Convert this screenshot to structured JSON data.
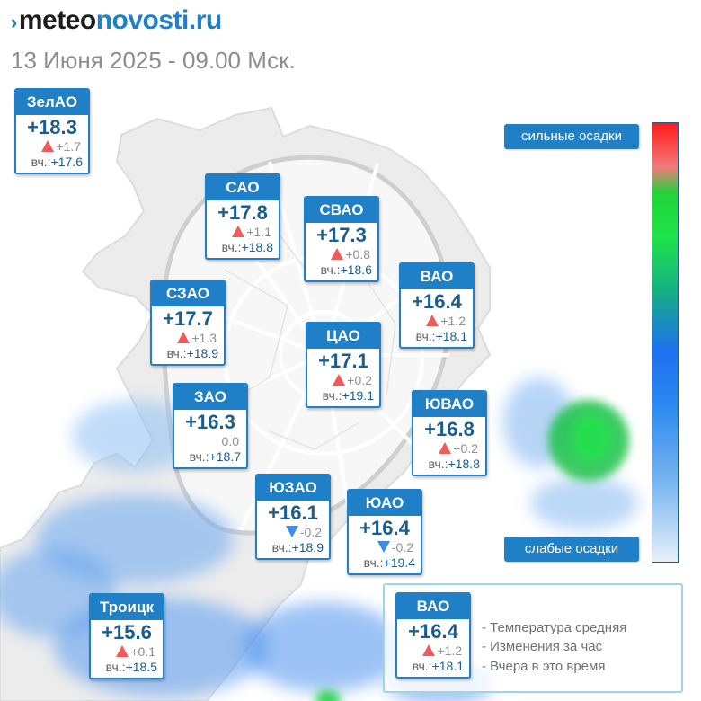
{
  "header": {
    "logo_main": "meteo",
    "logo_accent": "novosti.ru",
    "subtitle": "13 Июня 2025 - 09.00 Мск."
  },
  "districts": [
    {
      "id": "zelao",
      "name": "ЗелАО",
      "temp": "+18.3",
      "delta": "+1.7",
      "trend": "up",
      "prev_label": "вч.:",
      "prev": "+17.6"
    },
    {
      "id": "sao",
      "name": "САО",
      "temp": "+17.8",
      "delta": "+1.1",
      "trend": "up",
      "prev_label": "вч.:",
      "prev": "+18.8"
    },
    {
      "id": "svao",
      "name": "СВАО",
      "temp": "+17.3",
      "delta": "+0.8",
      "trend": "up",
      "prev_label": "вч.:",
      "prev": "+18.6"
    },
    {
      "id": "vao",
      "name": "ВАО",
      "temp": "+16.4",
      "delta": "+1.2",
      "trend": "up",
      "prev_label": "вч.:",
      "prev": "+18.1"
    },
    {
      "id": "szao",
      "name": "СЗАО",
      "temp": "+17.7",
      "delta": "+1.3",
      "trend": "up",
      "prev_label": "вч.:",
      "prev": "+18.9"
    },
    {
      "id": "tsao",
      "name": "ЦАО",
      "temp": "+17.1",
      "delta": "+0.2",
      "trend": "up",
      "prev_label": "вч.:",
      "prev": "+19.1"
    },
    {
      "id": "zao",
      "name": "ЗАО",
      "temp": "+16.3",
      "delta": "0.0",
      "trend": "none",
      "prev_label": "вч.:",
      "prev": "+18.7"
    },
    {
      "id": "yuvao",
      "name": "ЮВАО",
      "temp": "+16.8",
      "delta": "+0.2",
      "trend": "up",
      "prev_label": "вч.:",
      "prev": "+18.8"
    },
    {
      "id": "yuzao",
      "name": "ЮЗАО",
      "temp": "+16.1",
      "delta": "-0.2",
      "trend": "down",
      "prev_label": "вч.:",
      "prev": "+18.9"
    },
    {
      "id": "yuao",
      "name": "ЮАО",
      "temp": "+16.4",
      "delta": "-0.2",
      "trend": "down",
      "prev_label": "вч.:",
      "prev": "+19.4"
    },
    {
      "id": "troitsk",
      "name": "Троицк",
      "temp": "+15.6",
      "delta": "+0.1",
      "trend": "up",
      "prev_label": "вч.:",
      "prev": "+18.5"
    }
  ],
  "precip_scale": {
    "top_label": "сильные осадки",
    "bottom_label": "слабые осадки"
  },
  "legend": {
    "sample": {
      "name": "ВАО",
      "temp": "+16.4",
      "delta": "+1.2",
      "trend": "up",
      "prev_label": "вч.:",
      "prev": "+18.1"
    },
    "line1": "- Температура средняя",
    "line2": "- Изменения за час",
    "line3": "- Вчера в это время"
  },
  "colors": {
    "accent": "#1f7fc7",
    "trend_up": "#f05a5a",
    "trend_down": "#3a8ee6",
    "precip_light": "#3a8ef0",
    "precip_heavy": "#1ee44a"
  }
}
